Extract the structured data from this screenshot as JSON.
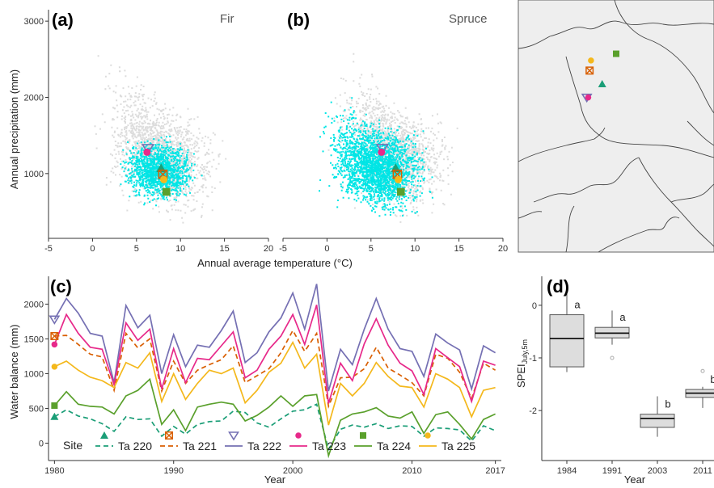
{
  "colors": {
    "Ta 220": "#1b9e77",
    "Ta 221": "#d95f02",
    "Ta 222": "#7570b3",
    "Ta 223": "#e7298a",
    "Ta 224": "#5aa02c",
    "Ta 225": "#f4b81c",
    "climate_grey": "#dcdcdc",
    "species_cyan": "#00e5e5",
    "box_fill": "#dddddd"
  },
  "icons": {
    "Ta 220": "filled-triangle-icon",
    "Ta 221": "crossed-square-icon",
    "Ta 222": "open-down-triangle-icon",
    "Ta 223": "filled-circle-icon",
    "Ta 224": "filled-square-icon",
    "Ta 225": "filled-circle-icon"
  },
  "chart_data": [
    {
      "id": "a",
      "type": "scatter",
      "panel_label": "(a)",
      "species": "Fir",
      "xlabel": "Annual average temperature (°C)",
      "ylabel": "Annual precipitation (mm)",
      "xlim": [
        -5,
        20
      ],
      "ylim": [
        150,
        3150
      ],
      "xticks": [
        -5,
        0,
        5,
        10,
        15,
        20
      ],
      "yticks": [
        1000,
        2000,
        3000
      ],
      "sites": [
        {
          "name": "Ta 220",
          "marker": "triangle",
          "x": 7.8,
          "y": 1070
        },
        {
          "name": "Ta 221",
          "marker": "crossed-square",
          "x": 8.0,
          "y": 990
        },
        {
          "name": "Ta 222",
          "marker": "down-triangle",
          "x": 6.3,
          "y": 1330
        },
        {
          "name": "Ta 223",
          "marker": "circle",
          "x": 6.2,
          "y": 1280
        },
        {
          "name": "Ta 224",
          "marker": "square",
          "x": 8.4,
          "y": 760
        },
        {
          "name": "Ta 225",
          "marker": "circle",
          "x": 8.1,
          "y": 920
        }
      ]
    },
    {
      "id": "b",
      "type": "scatter",
      "panel_label": "(b)",
      "species": "Spruce",
      "xlabel": "Annual average temperature (°C)",
      "xlim": [
        -5,
        20
      ],
      "ylim": [
        150,
        3150
      ],
      "xticks": [
        -5,
        0,
        5,
        10,
        15,
        20
      ],
      "sites": [
        {
          "name": "Ta 220",
          "marker": "triangle",
          "x": 7.8,
          "y": 1070
        },
        {
          "name": "Ta 221",
          "marker": "crossed-square",
          "x": 8.0,
          "y": 990
        },
        {
          "name": "Ta 222",
          "marker": "down-triangle",
          "x": 6.3,
          "y": 1330
        },
        {
          "name": "Ta 223",
          "marker": "circle",
          "x": 6.2,
          "y": 1280
        },
        {
          "name": "Ta 224",
          "marker": "square",
          "x": 8.4,
          "y": 760
        },
        {
          "name": "Ta 225",
          "marker": "circle",
          "x": 8.1,
          "y": 920
        }
      ]
    },
    {
      "id": "map",
      "type": "map",
      "sites": [
        {
          "name": "Ta 220",
          "marker": "triangle",
          "lon": 9.0,
          "lat": 48.0
        },
        {
          "name": "Ta 221",
          "marker": "crossed-square",
          "lon": 8.1,
          "lat": 48.4
        },
        {
          "name": "Ta 222",
          "marker": "down-triangle",
          "lon": 7.9,
          "lat": 47.6
        },
        {
          "name": "Ta 223",
          "marker": "circle",
          "lon": 8.0,
          "lat": 47.6
        },
        {
          "name": "Ta 224",
          "marker": "square",
          "lon": 10.0,
          "lat": 48.9
        },
        {
          "name": "Ta 225",
          "marker": "circle",
          "lon": 8.2,
          "lat": 48.7
        }
      ]
    },
    {
      "id": "c",
      "type": "line",
      "panel_label": "(c)",
      "xlabel": "Year",
      "ylabel": "Water balance (mm)",
      "xlim": [
        1979.5,
        2017.5
      ],
      "ylim": [
        -250,
        2400
      ],
      "xticks": [
        1980,
        1990,
        2000,
        2010,
        2017
      ],
      "yticks": [
        0,
        500,
        1000,
        1500,
        2000
      ],
      "legend_title": "Site",
      "legend_position": "bottom",
      "x": [
        1980,
        1981,
        1982,
        1983,
        1984,
        1985,
        1986,
        1987,
        1988,
        1989,
        1990,
        1991,
        1992,
        1993,
        1994,
        1995,
        1996,
        1997,
        1998,
        1999,
        2000,
        2001,
        2002,
        2003,
        2004,
        2005,
        2006,
        2007,
        2008,
        2009,
        2010,
        2011,
        2012,
        2013,
        2014,
        2015,
        2016,
        2017
      ],
      "series": [
        {
          "name": "Ta 220",
          "dash": "dashed",
          "marker": "triangle",
          "values": [
            380,
            480,
            390,
            350,
            280,
            170,
            380,
            340,
            350,
            100,
            240,
            130,
            270,
            310,
            320,
            460,
            440,
            290,
            230,
            350,
            460,
            480,
            560,
            -90,
            200,
            260,
            230,
            280,
            210,
            250,
            240,
            100,
            220,
            210,
            190,
            30,
            250,
            180
          ]
        },
        {
          "name": "Ta 221",
          "dash": "dashed",
          "marker": "crossed-square",
          "values": [
            1540,
            1550,
            1420,
            1280,
            1240,
            760,
            1580,
            1370,
            1500,
            750,
            1180,
            860,
            1050,
            1130,
            1200,
            1400,
            870,
            970,
            1070,
            1300,
            1620,
            1320,
            1580,
            530,
            940,
            950,
            1070,
            1380,
            1080,
            980,
            870,
            680,
            1280,
            1220,
            1020,
            640,
            1150,
            1050
          ]
        },
        {
          "name": "Ta 222",
          "dash": "solid",
          "marker": "down-triangle",
          "values": [
            1780,
            2080,
            1870,
            1580,
            1540,
            870,
            1980,
            1660,
            1840,
            1000,
            1560,
            1100,
            1410,
            1380,
            1620,
            1900,
            1160,
            1300,
            1600,
            1800,
            2160,
            1640,
            2290,
            750,
            1350,
            1130,
            1640,
            2080,
            1640,
            1360,
            1320,
            960,
            1570,
            1440,
            1340,
            780,
            1400,
            1300
          ]
        },
        {
          "name": "Ta 223",
          "dash": "solid",
          "marker": "circle",
          "values": [
            1420,
            1850,
            1580,
            1380,
            1350,
            840,
            1730,
            1480,
            1640,
            780,
            1360,
            870,
            1220,
            1200,
            1400,
            1600,
            940,
            1050,
            1350,
            1540,
            1850,
            1420,
            1990,
            570,
            1150,
            900,
            1430,
            1790,
            1410,
            1150,
            1040,
            700,
            1360,
            1230,
            1100,
            600,
            1180,
            1120
          ]
        },
        {
          "name": "Ta 224",
          "dash": "solid",
          "marker": "square",
          "values": [
            540,
            740,
            560,
            530,
            520,
            420,
            680,
            760,
            920,
            270,
            480,
            180,
            520,
            560,
            590,
            560,
            320,
            400,
            520,
            680,
            530,
            680,
            700,
            -180,
            330,
            420,
            450,
            510,
            390,
            360,
            450,
            140,
            410,
            450,
            270,
            60,
            340,
            420
          ]
        },
        {
          "name": "Ta 225",
          "dash": "solid",
          "marker": "circle",
          "values": [
            1100,
            1180,
            1050,
            950,
            900,
            800,
            1160,
            1080,
            1300,
            600,
            1000,
            630,
            860,
            1050,
            1000,
            1080,
            580,
            760,
            1020,
            1150,
            1450,
            1080,
            1280,
            260,
            860,
            680,
            860,
            1160,
            960,
            820,
            800,
            520,
            1000,
            920,
            800,
            380,
            760,
            800
          ]
        }
      ]
    },
    {
      "id": "d",
      "type": "box",
      "panel_label": "(d)",
      "xlabel": "Year",
      "ylabel": "SPEI",
      "ylabel_subscript": "July,5m",
      "ylim": [
        -2.95,
        0.55
      ],
      "yticks": [
        0,
        -1,
        -2
      ],
      "categories": [
        "1984",
        "1991",
        "2003",
        "2011"
      ],
      "boxes": [
        {
          "min": -1.27,
          "q1": -1.17,
          "median": -0.63,
          "q3": -0.18,
          "max": 0.43,
          "outliers": [],
          "group": "a"
        },
        {
          "min": -0.75,
          "q1": -0.62,
          "median": -0.53,
          "q3": -0.42,
          "max": -0.1,
          "outliers": [
            -1.0
          ],
          "group": "a"
        },
        {
          "min": -2.5,
          "q1": -2.32,
          "median": -2.15,
          "q3": -2.07,
          "max": -1.73,
          "outliers": [],
          "group": "b"
        },
        {
          "min": -1.95,
          "q1": -1.75,
          "median": -1.67,
          "q3": -1.6,
          "max": -1.55,
          "outliers": [
            -1.25
          ],
          "group": "b"
        }
      ]
    }
  ]
}
